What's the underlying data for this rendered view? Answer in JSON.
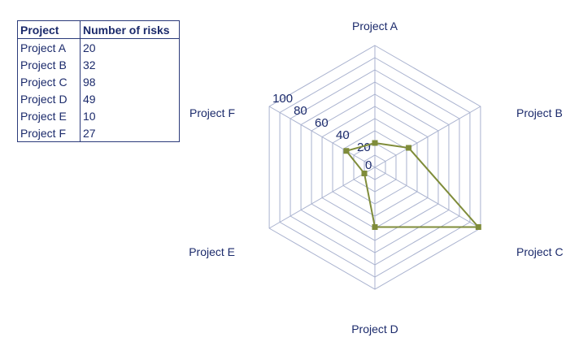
{
  "table": {
    "headers": [
      "Project",
      "Number of risks"
    ],
    "rows": [
      [
        "Project A",
        "20"
      ],
      [
        "Project B",
        "32"
      ],
      [
        "Project C",
        "98"
      ],
      [
        "Project D",
        "49"
      ],
      [
        "Project E",
        "10"
      ],
      [
        "Project F",
        "27"
      ]
    ]
  },
  "chart_data": {
    "type": "radar",
    "categories": [
      "Project A",
      "Project B",
      "Project C",
      "Project D",
      "Project E",
      "Project F"
    ],
    "series": [
      {
        "values": [
          20,
          32,
          98,
          49,
          10,
          27
        ],
        "color": "#7f8c3a"
      }
    ],
    "rlim": [
      0,
      100
    ],
    "rticks": [
      "0",
      "20",
      "40",
      "60",
      "80",
      "100"
    ],
    "grid": true,
    "gridlines": 10,
    "legend": "none"
  }
}
